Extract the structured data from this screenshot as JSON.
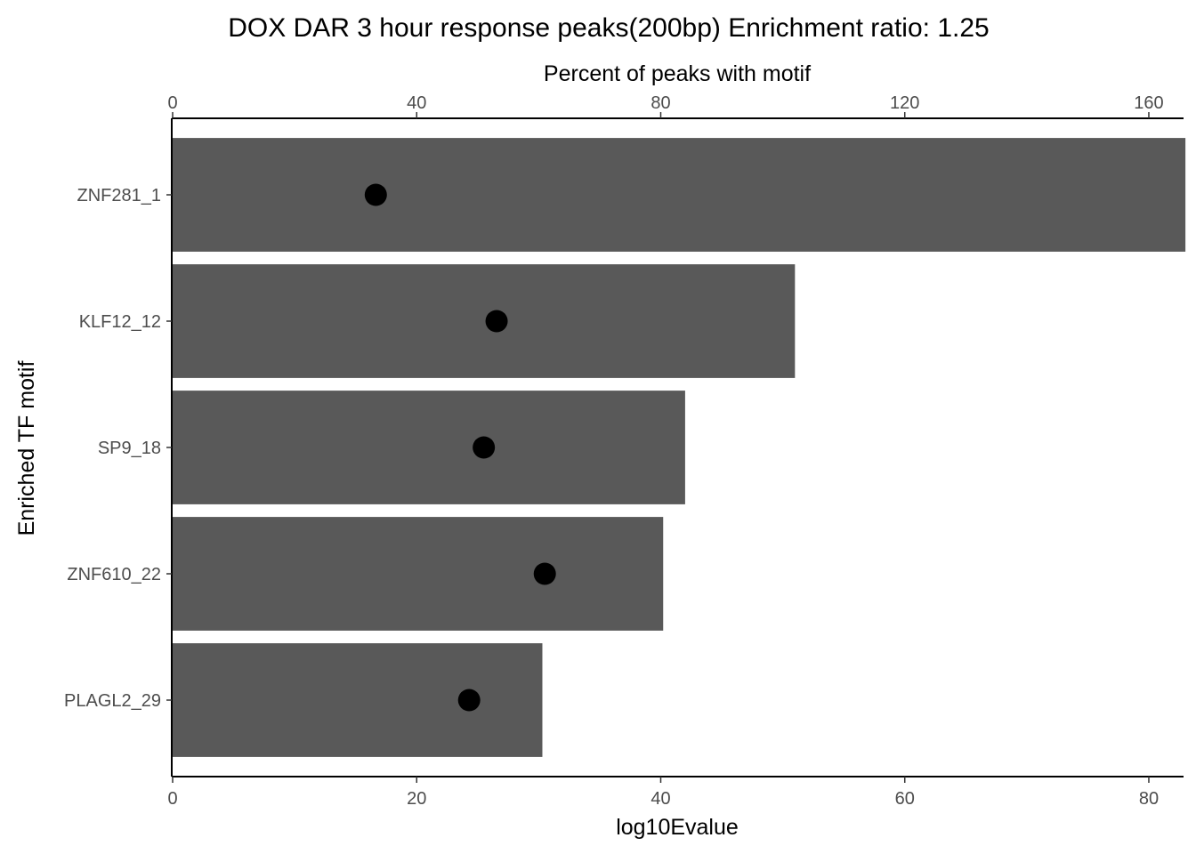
{
  "chart_data": {
    "type": "bar",
    "orientation": "horizontal",
    "title": "DOX DAR 3 hour response peaks(200bp) Enrichment ratio: 1.25",
    "ylabel": "Enriched TF motif",
    "xlabel_bottom": "log10Evalue",
    "xlabel_top": "Percent of peaks with motif",
    "categories": [
      "ZNF281_1",
      "KLF12_12",
      "SP9_18",
      "ZNF610_22",
      "PLAGL2_29"
    ],
    "bar_series": {
      "axis": "bottom",
      "color": "#595959",
      "values": [
        83,
        51,
        42,
        40.2,
        30.3
      ]
    },
    "point_series": {
      "axis": "top",
      "color": "#000000",
      "values": [
        33.3,
        53.1,
        51.0,
        61.0,
        48.6
      ]
    },
    "xlim_bottom": [
      0,
      82.7
    ],
    "xlim_top": [
      0,
      165.4
    ],
    "xticks_bottom": [
      "0",
      "20",
      "40",
      "60",
      "80"
    ],
    "xticks_top": [
      "0",
      "40",
      "80",
      "120",
      "160"
    ],
    "grid": false,
    "legend": "none"
  }
}
